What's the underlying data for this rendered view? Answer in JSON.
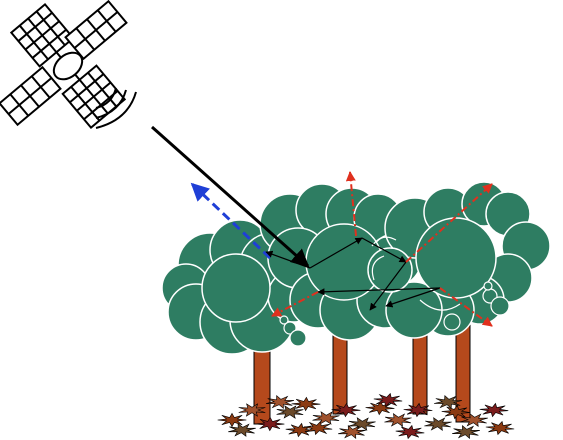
{
  "figure": {
    "background_color": "#ffffff",
    "satellite": {
      "icon": "satellite-icon",
      "panel_color": "#ffffff",
      "outline_color": "#000000"
    },
    "canopy": {
      "tree_count": 4,
      "foliage_color": "#2e7d62",
      "trunk_color": "#b5491c",
      "leaf_litter_colors": [
        "#8b3a12",
        "#a0522d",
        "#7a1c1c",
        "#6b4a2a"
      ]
    },
    "rays": {
      "incident_color": "#000000",
      "backscatter_color": "#1f3fd6",
      "scatter_color": "#e0301e",
      "internal_color": "#000000"
    }
  }
}
